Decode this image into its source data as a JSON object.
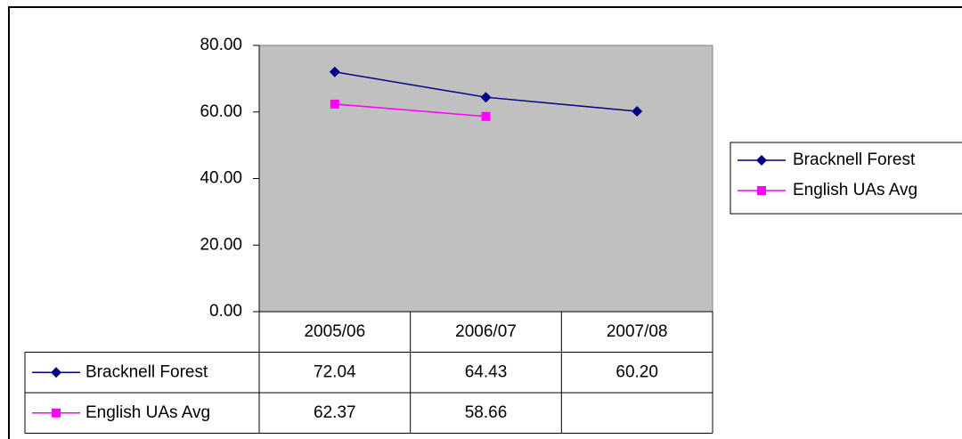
{
  "chart_data": {
    "type": "line",
    "categories": [
      "2005/06",
      "2006/07",
      "2007/08"
    ],
    "series": [
      {
        "name": "Bracknell Forest",
        "color": "#000080",
        "marker": "diamond",
        "values": [
          72.04,
          64.43,
          60.2
        ],
        "value_labels": [
          "72.04",
          "64.43",
          "60.20"
        ]
      },
      {
        "name": "English UAs Avg",
        "color": "#ff00ff",
        "marker": "square",
        "values": [
          62.37,
          58.66,
          null
        ],
        "value_labels": [
          "62.37",
          "58.66",
          null
        ]
      }
    ],
    "ylim": [
      0,
      80
    ],
    "yticks": [
      {
        "value": 0,
        "label": "0.00"
      },
      {
        "value": 20,
        "label": "20.00"
      },
      {
        "value": 40,
        "label": "40.00"
      },
      {
        "value": 60,
        "label": "60.00"
      },
      {
        "value": 80,
        "label": "80.00"
      }
    ],
    "plot_background": "#c0c0c0",
    "legend": "right",
    "data_table": true
  }
}
